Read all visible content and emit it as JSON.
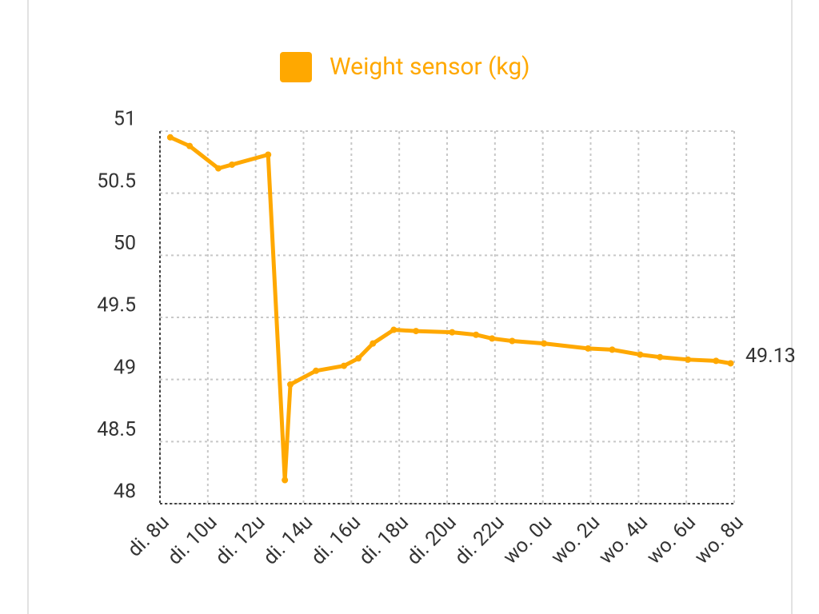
{
  "chart_data": {
    "type": "line",
    "legend": "Weight sensor (kg)",
    "color": "#ffa800",
    "x": [
      8.43,
      9.24,
      10.44,
      11.01,
      12.52,
      13.22,
      13.45,
      14.52,
      15.69,
      16.29,
      16.9,
      17.77,
      18.7,
      20.21,
      21.21,
      21.88,
      22.72,
      24.05,
      25.89,
      26.9,
      28.07,
      28.9,
      30.07,
      31.24,
      31.85
    ],
    "series": [
      {
        "name": "Weight sensor (kg)",
        "color": "#ffa800",
        "values": [
          50.95,
          50.88,
          50.7,
          50.73,
          50.81,
          48.19,
          48.96,
          49.07,
          49.11,
          49.17,
          49.29,
          49.4,
          49.39,
          49.38,
          49.36,
          49.33,
          49.31,
          49.29,
          49.25,
          49.24,
          49.2,
          49.18,
          49.16,
          49.15,
          49.13
        ]
      }
    ],
    "xlim": [
      8,
      32
    ],
    "xticks": [
      {
        "value": 8,
        "label": "di. 8u"
      },
      {
        "value": 10,
        "label": "di. 10u"
      },
      {
        "value": 12,
        "label": "di. 12u"
      },
      {
        "value": 14,
        "label": "di. 14u"
      },
      {
        "value": 16,
        "label": "di. 16u"
      },
      {
        "value": 18,
        "label": "di. 18u"
      },
      {
        "value": 20,
        "label": "di. 20u"
      },
      {
        "value": 22,
        "label": "di. 22u"
      },
      {
        "value": 24,
        "label": "wo. 0u"
      },
      {
        "value": 26,
        "label": "wo. 2u"
      },
      {
        "value": 28,
        "label": "wo. 4u"
      },
      {
        "value": 30,
        "label": "wo. 6u"
      },
      {
        "value": 32,
        "label": "wo. 8u"
      }
    ],
    "ylim": [
      48,
      51
    ],
    "yticks": [
      48,
      48.5,
      49,
      49.5,
      50,
      50.5,
      51
    ],
    "grid": true
  }
}
